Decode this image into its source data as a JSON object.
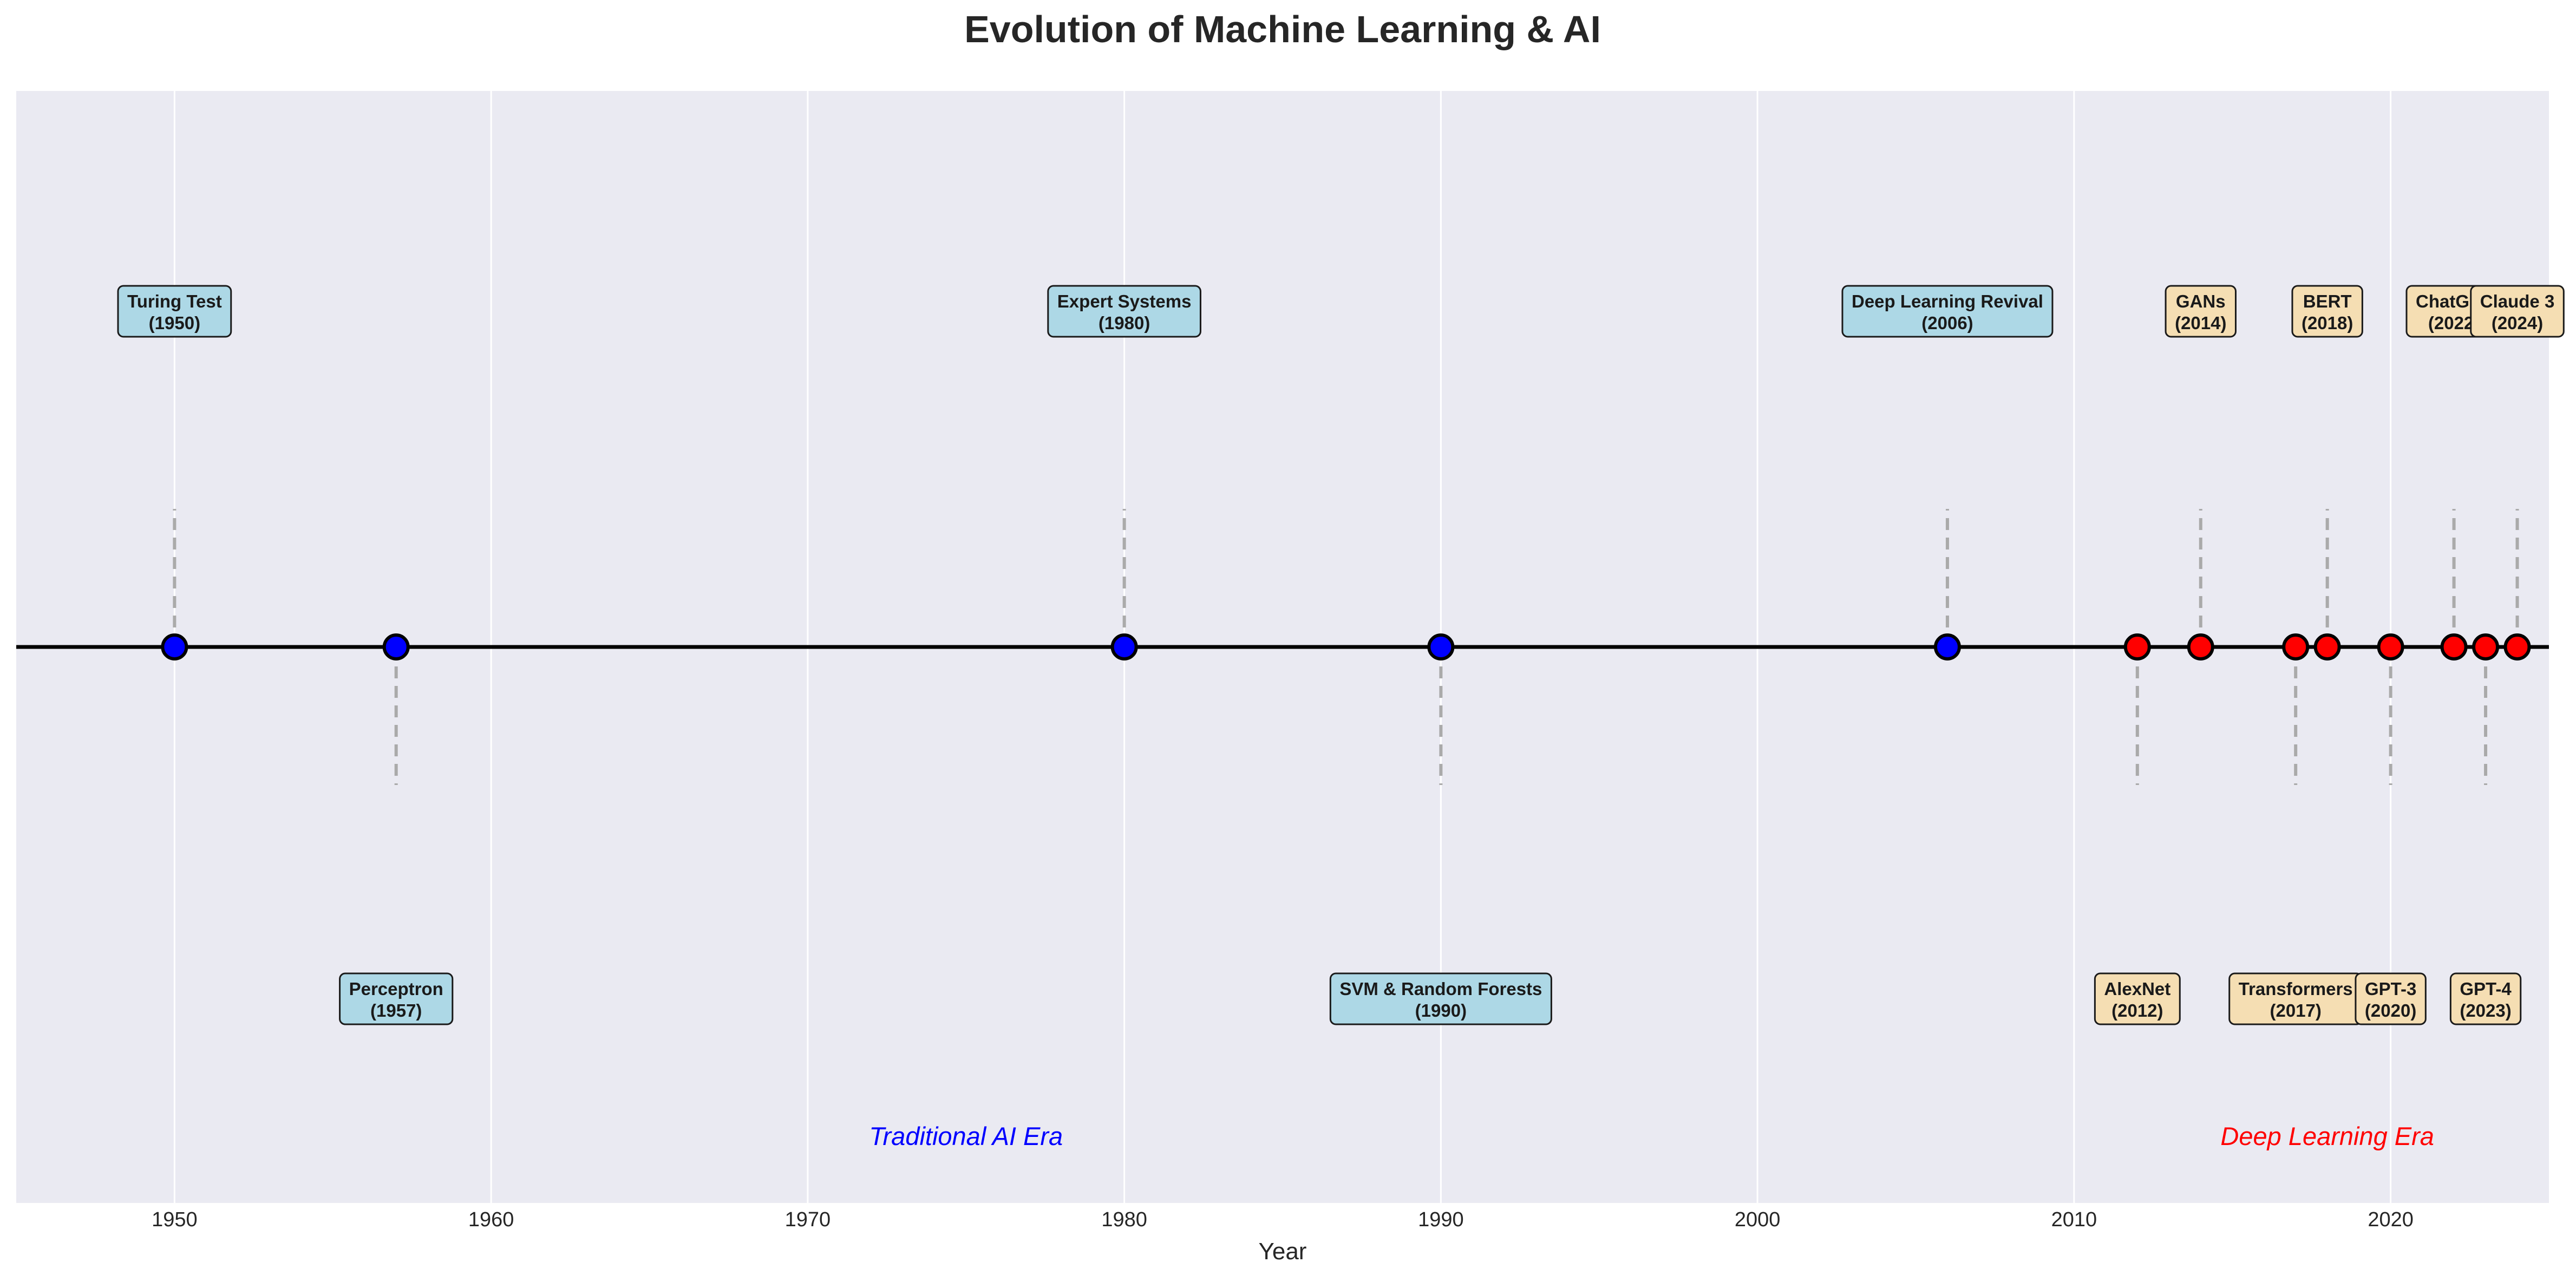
{
  "chart_data": {
    "type": "scatter",
    "title": "Evolution of Machine Learning & AI",
    "xlabel": "Year",
    "ylabel": "",
    "xlim": [
      1945,
      2025
    ],
    "ylim": [
      -1.8,
      1.8
    ],
    "xticks": [
      1950,
      1960,
      1970,
      1980,
      1990,
      2000,
      2010,
      2020
    ],
    "grid": true,
    "events": [
      {
        "year": 1950,
        "name": "Turing Test",
        "year_label": "(1950)",
        "era": "traditional",
        "side": "above"
      },
      {
        "year": 1957,
        "name": "Perceptron",
        "year_label": "(1957)",
        "era": "traditional",
        "side": "below"
      },
      {
        "year": 1980,
        "name": "Expert Systems",
        "year_label": "(1980)",
        "era": "traditional",
        "side": "above"
      },
      {
        "year": 1990,
        "name": "SVM & Random Forests",
        "year_label": "(1990)",
        "era": "traditional",
        "side": "below"
      },
      {
        "year": 2006,
        "name": "Deep Learning Revival",
        "year_label": "(2006)",
        "era": "traditional",
        "side": "above"
      },
      {
        "year": 2012,
        "name": "AlexNet",
        "year_label": "(2012)",
        "era": "deep",
        "side": "below"
      },
      {
        "year": 2014,
        "name": "GANs",
        "year_label": "(2014)",
        "era": "deep",
        "side": "above"
      },
      {
        "year": 2017,
        "name": "Transformers",
        "year_label": "(2017)",
        "era": "deep",
        "side": "below"
      },
      {
        "year": 2018,
        "name": "BERT",
        "year_label": "(2018)",
        "era": "deep",
        "side": "above"
      },
      {
        "year": 2020,
        "name": "GPT-3",
        "year_label": "(2020)",
        "era": "deep",
        "side": "below"
      },
      {
        "year": 2022,
        "name": "ChatGPT",
        "year_label": "(2022)",
        "era": "deep",
        "side": "above"
      },
      {
        "year": 2023,
        "name": "GPT-4",
        "year_label": "(2023)",
        "era": "deep",
        "side": "below"
      },
      {
        "year": 2024,
        "name": "Claude 3",
        "year_label": "(2024)",
        "era": "deep",
        "side": "above"
      }
    ],
    "eras": [
      {
        "label": "Traditional AI Era",
        "year": 1975,
        "color": "#0000ff"
      },
      {
        "label": "Deep Learning Era",
        "year": 2018,
        "color": "#ff0000"
      }
    ],
    "colors": {
      "traditional_marker": "#0000ff",
      "deep_marker": "#ff0000",
      "traditional_box": "#add8e6",
      "deep_box": "#f5deb3",
      "plot_background": "#eaeaf2",
      "grid": "#ffffff",
      "timeline": "#000000",
      "stem": "#aaaaaa"
    }
  }
}
